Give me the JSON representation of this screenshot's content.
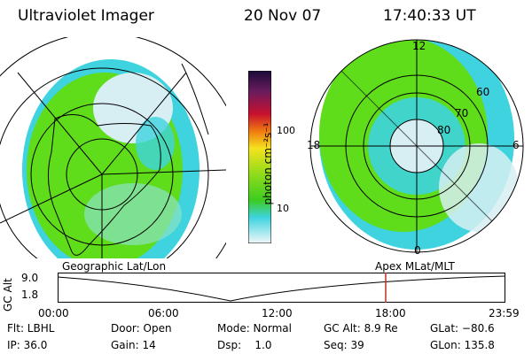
{
  "header": {
    "title": "Ultraviolet Imager",
    "date": "20 Nov 07",
    "time": "17:40:33 UT"
  },
  "colorbar": {
    "label": "photon cm⁻²s⁻¹",
    "ticks": [
      "100",
      "10"
    ]
  },
  "right_map": {
    "mlt_labels": {
      "top": "12",
      "left": "18",
      "right": "6",
      "bottom": "0"
    },
    "lat_labels": [
      "60",
      "70",
      "80"
    ]
  },
  "coordinate_labels": {
    "left": "Geographic Lat/Lon",
    "right": "Apex MLat/MLT"
  },
  "timeline": {
    "y_title": "GC Alt",
    "y_ticks": [
      "9.0",
      "1.8"
    ],
    "x_ticks": [
      "00:00",
      "06:00",
      "12:00",
      "18:00",
      "23:59"
    ]
  },
  "status": {
    "filter": "Flt: LBHL",
    "ip": "IP: 36.0",
    "door": "Door: Open",
    "gain": "Gain: 14",
    "mode": "Mode: Normal",
    "dsp": "Dsp:    1.0",
    "gc_alt": "GC Alt: 8.9 Re",
    "seq": "Seq: 39",
    "glat": "GLat: −80.6",
    "glon": "GLon: 135.8"
  },
  "colors": {
    "green": "#5fdc1a",
    "cyan": "#3ed3df",
    "light": "#d7eef2",
    "marker": "#c03020"
  }
}
